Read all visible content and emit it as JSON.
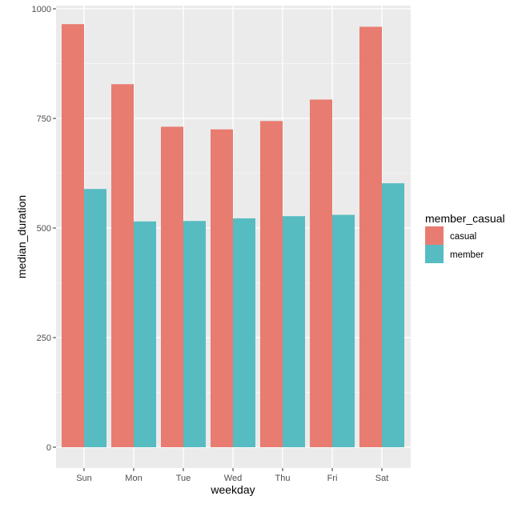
{
  "chart_data": {
    "type": "bar",
    "xlabel": "weekday",
    "ylabel": "median_duration",
    "categories": [
      "Sun",
      "Mon",
      "Tue",
      "Wed",
      "Thu",
      "Fri",
      "Sat"
    ],
    "series": [
      {
        "name": "casual",
        "color": "#e87c70",
        "values": [
          965,
          828,
          731,
          725,
          744,
          793,
          959
        ]
      },
      {
        "name": "member",
        "color": "#56bcc2",
        "values": [
          589,
          515,
          516,
          522,
          527,
          530,
          602
        ]
      }
    ],
    "ylim": [
      0,
      1000
    ],
    "y_ticks": [
      0,
      250,
      500,
      750,
      1000
    ],
    "y_tick_labels": [
      "0",
      "250",
      "500",
      "750",
      "1000"
    ],
    "legend": {
      "title": "member_casual",
      "position": "right"
    },
    "grid": true,
    "panel_background": "#ebebeb",
    "grid_color": "#ffffff"
  }
}
